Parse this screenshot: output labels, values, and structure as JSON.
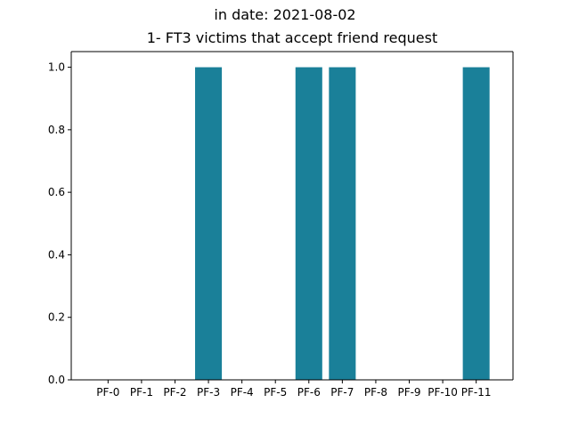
{
  "suptitle": "in date: 2021-08-02",
  "chart_data": {
    "type": "bar",
    "title": "1- FT3 victims that accept friend request",
    "xlabel": "",
    "ylabel": "",
    "categories": [
      "PF-0",
      "PF-1",
      "PF-2",
      "PF-3",
      "PF-4",
      "PF-5",
      "PF-6",
      "PF-7",
      "PF-8",
      "PF-9",
      "PF-10",
      "PF-11"
    ],
    "values": [
      0,
      0,
      0,
      1,
      0,
      0,
      1,
      1,
      0,
      0,
      0,
      1
    ],
    "ylim": [
      0,
      1.05
    ],
    "yticks": [
      "0.0",
      "0.2",
      "0.4",
      "0.6",
      "0.8",
      "1.0"
    ],
    "bar_color": "#1a8099",
    "grid": false,
    "legend": "none"
  }
}
